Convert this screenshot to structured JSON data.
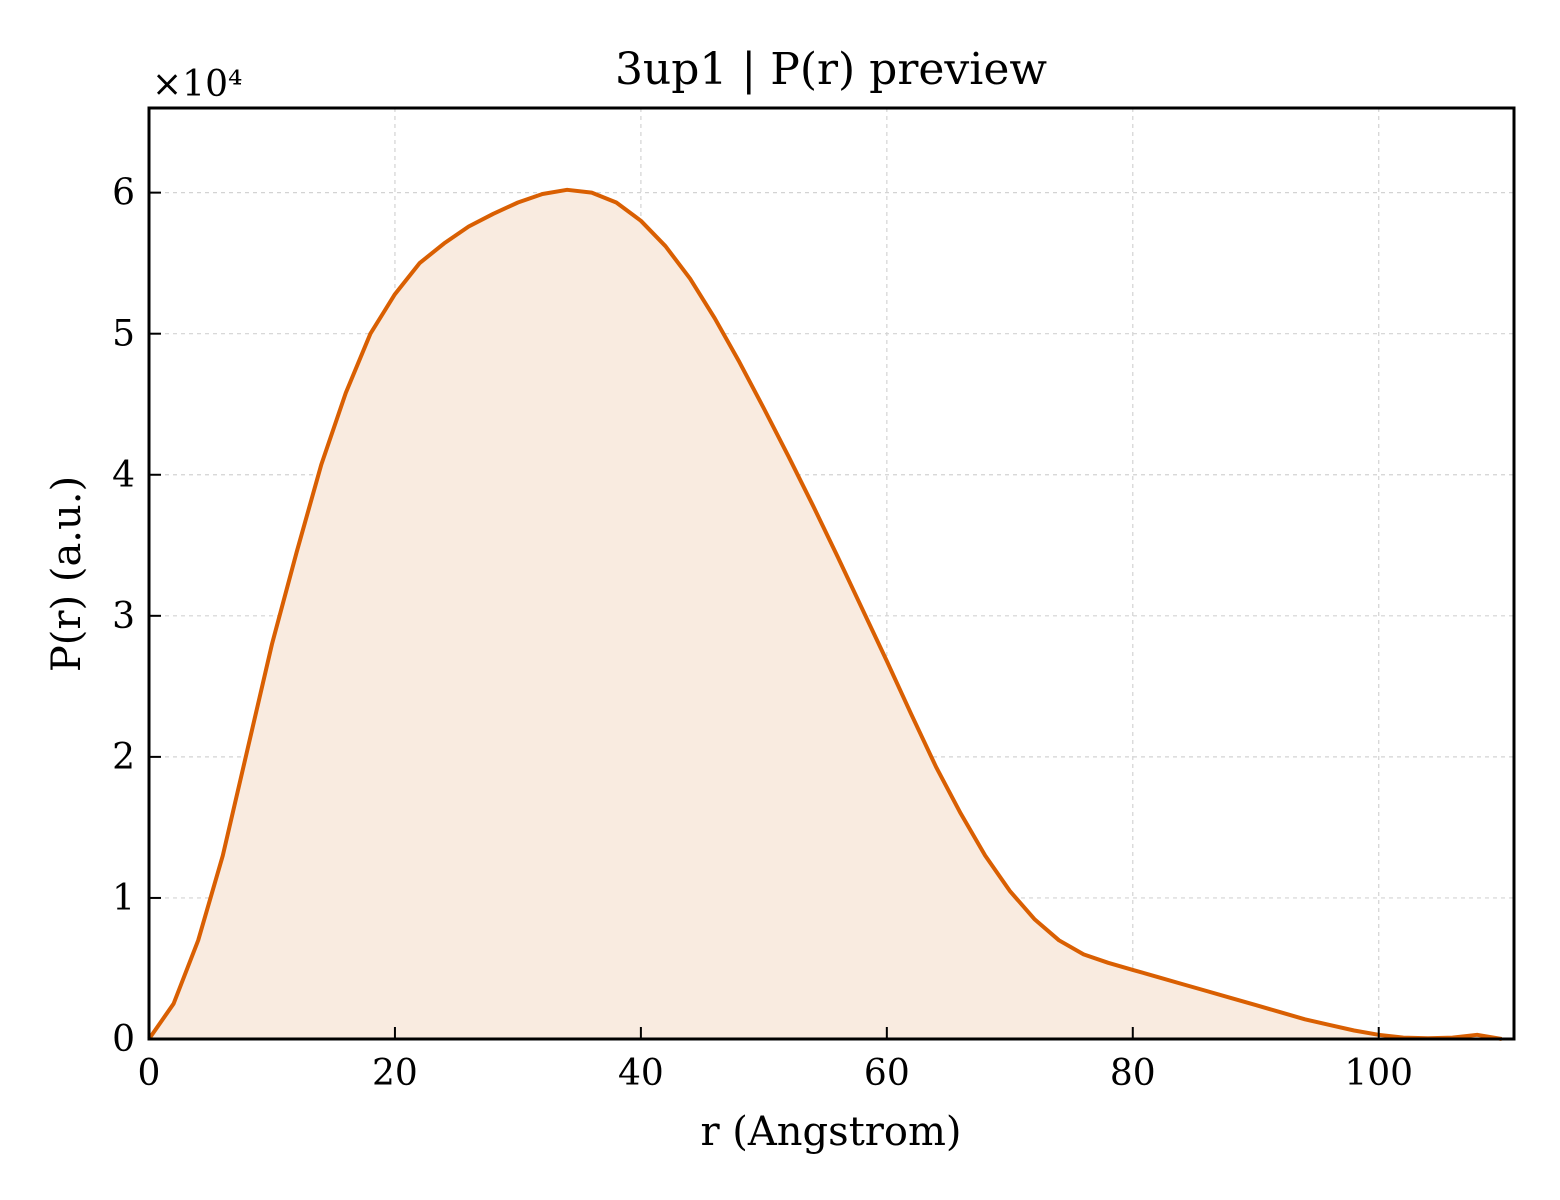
{
  "chart_data": {
    "type": "area",
    "title": "3up1 | P(r) preview",
    "xlabel": "r (Angstrom)",
    "ylabel": "P(r) (a.u.)",
    "y_multiplier_label": "×10⁴",
    "xlim": [
      0,
      111
    ],
    "ylim": [
      0,
      6.6
    ],
    "xticks": [
      0,
      20,
      40,
      60,
      80,
      100
    ],
    "yticks": [
      0,
      1,
      2,
      3,
      4,
      5,
      6
    ],
    "grid": true,
    "line_color": "#d95f02",
    "fill_color": "#f9ebe0",
    "series": [
      {
        "x": [
          0,
          2,
          4,
          6,
          8,
          10,
          12,
          14,
          16,
          18,
          20,
          22,
          24,
          26,
          28,
          30,
          32,
          34,
          36,
          38,
          40,
          42,
          44,
          46,
          48,
          50,
          52,
          54,
          56,
          58,
          60,
          62,
          64,
          66,
          68,
          70,
          72,
          74,
          76,
          78,
          80,
          82,
          84,
          86,
          88,
          90,
          92,
          94,
          96,
          98,
          100,
          102,
          104,
          106,
          108,
          110
        ],
        "y": [
          0,
          0.25,
          0.7,
          1.3,
          2.05,
          2.8,
          3.45,
          4.07,
          4.58,
          5.0,
          5.28,
          5.5,
          5.64,
          5.76,
          5.85,
          5.93,
          5.99,
          6.02,
          6.0,
          5.93,
          5.8,
          5.62,
          5.39,
          5.11,
          4.8,
          4.47,
          4.13,
          3.78,
          3.42,
          3.05,
          2.68,
          2.3,
          1.93,
          1.6,
          1.3,
          1.05,
          0.85,
          0.7,
          0.6,
          0.54,
          0.49,
          0.44,
          0.39,
          0.34,
          0.29,
          0.24,
          0.19,
          0.14,
          0.1,
          0.06,
          0.03,
          0.01,
          0.005,
          0.01,
          0.03,
          0.0
        ]
      }
    ]
  }
}
